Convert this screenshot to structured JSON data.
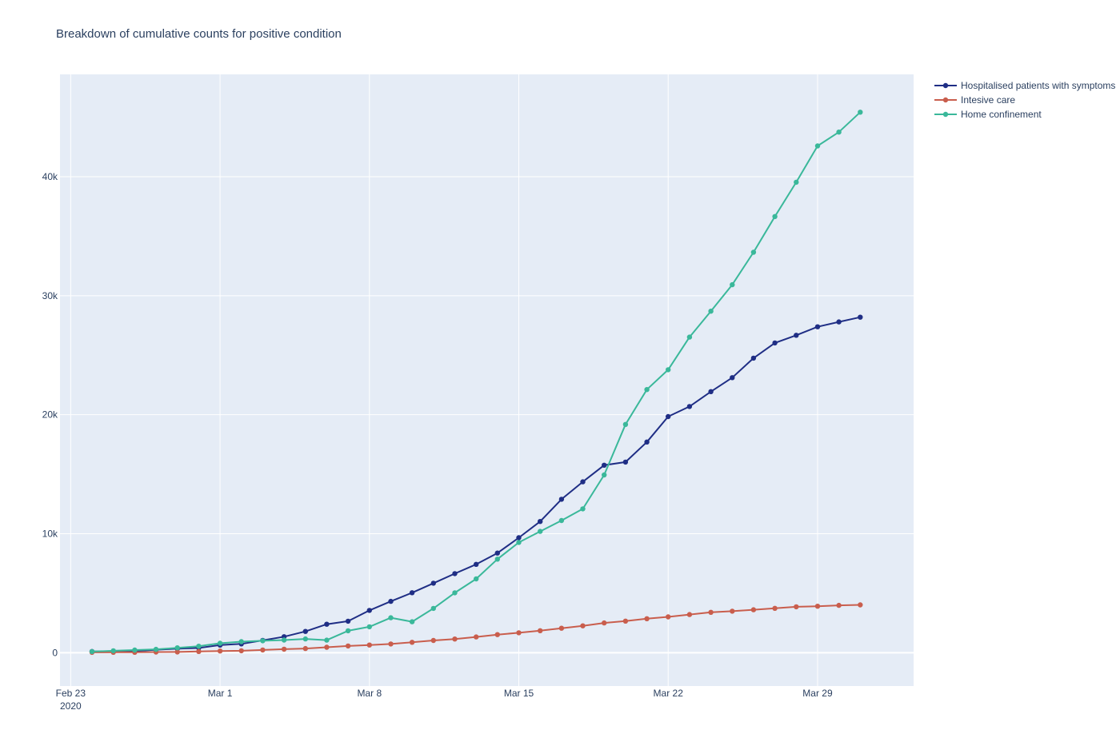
{
  "chart_data": {
    "type": "line",
    "title": "Breakdown of cumulative counts for positive condition",
    "xlabel": "",
    "ylabel": "",
    "x_start": "2020-02-24",
    "x_ticks": [
      {
        "date": "2020-02-23",
        "label": "Feb 23",
        "sublabel": "2020"
      },
      {
        "date": "2020-03-01",
        "label": "Mar 1",
        "sublabel": ""
      },
      {
        "date": "2020-03-08",
        "label": "Mar 8",
        "sublabel": ""
      },
      {
        "date": "2020-03-15",
        "label": "Mar 15",
        "sublabel": ""
      },
      {
        "date": "2020-03-22",
        "label": "Mar 22",
        "sublabel": ""
      },
      {
        "date": "2020-03-29",
        "label": "Mar 29",
        "sublabel": ""
      }
    ],
    "xlim": [
      "2020-02-22 12:00",
      "2020-04-02 12:00"
    ],
    "ylim": [
      -2800,
      48600
    ],
    "y_ticks": [
      {
        "value": 0,
        "label": "0"
      },
      {
        "value": 10000,
        "label": "10k"
      },
      {
        "value": 20000,
        "label": "20k"
      },
      {
        "value": 30000,
        "label": "30k"
      },
      {
        "value": 40000,
        "label": "40k"
      }
    ],
    "grid": true,
    "legend_position": "top-right, outside plot",
    "plot_bg": "#e5ecf6",
    "series": [
      {
        "name": "Hospitalised patients with symptoms",
        "color": "#1f2e85",
        "values": [
          101,
          114,
          128,
          248,
          345,
          401,
          639,
          742,
          1034,
          1346,
          1790,
          2394,
          2651,
          3557,
          4316,
          5038,
          5838,
          6650,
          7426,
          8372,
          9663,
          11025,
          12894,
          14363,
          15757,
          16020,
          17708,
          19846,
          20692,
          21937,
          23112,
          24753,
          26029,
          26676,
          27386,
          27795,
          28192
        ]
      },
      {
        "name": "Intesive care",
        "color": "#c95e4d",
        "values": [
          26,
          35,
          36,
          56,
          64,
          105,
          140,
          166,
          229,
          295,
          351,
          462,
          567,
          650,
          733,
          877,
          1028,
          1153,
          1328,
          1518,
          1672,
          1851,
          2060,
          2257,
          2498,
          2655,
          2857,
          3009,
          3204,
          3396,
          3489,
          3612,
          3732,
          3856,
          3906,
          3981,
          4023
        ]
      },
      {
        "name": "Home confinement",
        "color": "#3ab89a",
        "values": [
          94,
          162,
          221,
          284,
          412,
          543,
          798,
          927,
          1000,
          1065,
          1155,
          1060,
          1843,
          2180,
          2936,
          2599,
          3724,
          5036,
          6201,
          7860,
          9268,
          10197,
          11108,
          12090,
          14935,
          19185,
          22116,
          23783,
          26522,
          28697,
          30920,
          33648,
          36653,
          39533,
          42588,
          43752,
          45420
        ]
      }
    ]
  }
}
